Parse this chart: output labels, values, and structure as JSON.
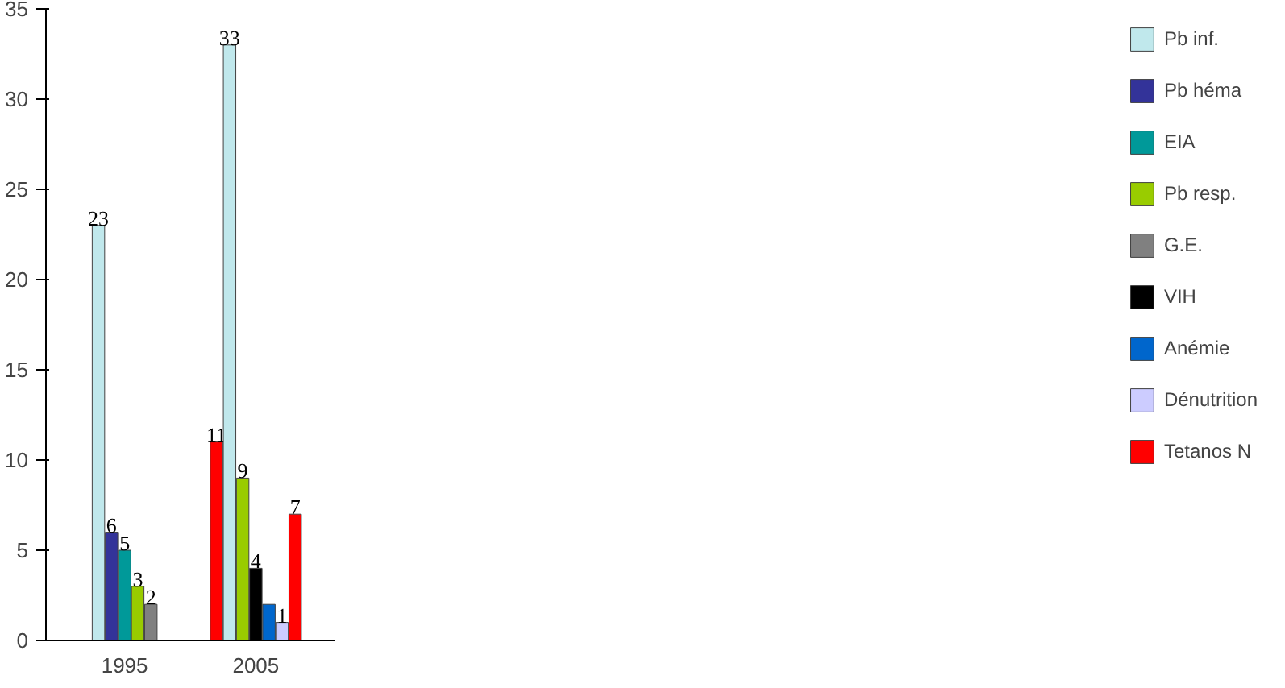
{
  "chart_data": {
    "type": "bar",
    "categories": [
      "1995",
      "2005"
    ],
    "series": [
      {
        "color": "#ff0000",
        "values": [
          null,
          11
        ],
        "value_labels": [
          null,
          "11"
        ]
      },
      {
        "name": "Pb inf.",
        "color": "#c0e8ec",
        "values": [
          23,
          33
        ],
        "value_labels": [
          "23",
          "33"
        ]
      },
      {
        "name": "Pb héma",
        "color": "#333399",
        "values": [
          6,
          null
        ],
        "value_labels": [
          "6",
          null
        ]
      },
      {
        "name": "EIA",
        "color": "#009999",
        "values": [
          5,
          null
        ],
        "value_labels": [
          "5",
          null
        ]
      },
      {
        "name": "Pb resp.",
        "color": "#99cc00",
        "values": [
          3,
          9
        ],
        "value_labels": [
          "3",
          "9"
        ]
      },
      {
        "name": "G.E.",
        "color": "#808080",
        "values": [
          2,
          null
        ],
        "value_labels": [
          "2",
          null
        ]
      },
      {
        "name": "VIH",
        "color": "#000000",
        "values": [
          null,
          4
        ],
        "value_labels": [
          null,
          "4"
        ]
      },
      {
        "name": "Anémie",
        "color": "#0066cc",
        "values": [
          null,
          2
        ],
        "value_labels": [
          null,
          null
        ]
      },
      {
        "name": "Dénutrition",
        "color": "#ccccff",
        "values": [
          null,
          1
        ],
        "value_labels": [
          null,
          "1"
        ]
      },
      {
        "name": "Tetanos N",
        "color": "#ff0000",
        "values": [
          null,
          7
        ],
        "value_labels": [
          null,
          "7"
        ]
      }
    ],
    "ylim": [
      0,
      35
    ],
    "yticks": [
      0,
      5,
      10,
      15,
      20,
      25,
      30,
      35
    ],
    "grid": false,
    "legend": "right"
  }
}
